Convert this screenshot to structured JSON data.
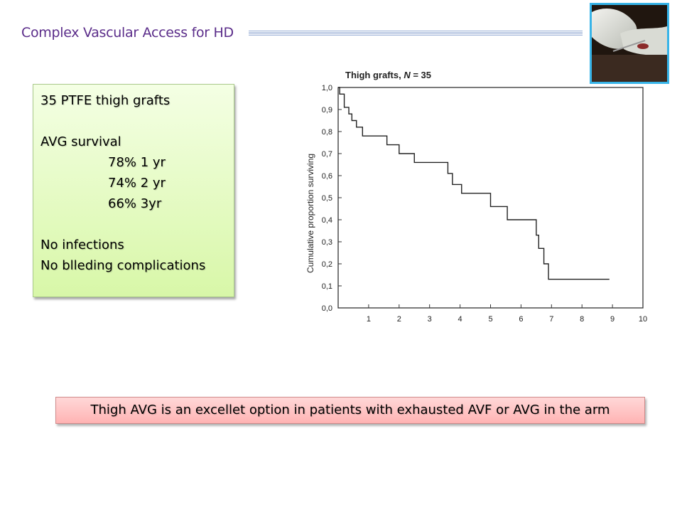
{
  "slide": {
    "title": "Complex Vascular Access for HD"
  },
  "info_box": {
    "line1": "35 PTFE thigh grafts",
    "line2": "AVG survival",
    "line3": "78% 1 yr",
    "line4": "74% 2 yr",
    "line5": "66% 3yr",
    "line6": "No infections",
    "line7": "No blleding complications"
  },
  "conclusion": {
    "text": "Thigh AVG is an excellet option in patients with exhausted AVF or AVG in the arm"
  },
  "colors": {
    "title": "#5b2d8a",
    "info_box_bg": "#d8f7a8",
    "conclusion_bg": "#ffb3b3",
    "photo_border": "#38b4e8"
  },
  "chart_data": {
    "type": "line",
    "step": true,
    "title_prefix": "Thigh grafts, ",
    "title_n_label": "N",
    "title_n_value": " = 35",
    "ylabel": "Cumulative proportion surviving",
    "xlabel": "",
    "xlim": [
      0,
      10
    ],
    "ylim": [
      0,
      1.0
    ],
    "x_ticks": [
      "1",
      "2",
      "3",
      "4",
      "5",
      "6",
      "7",
      "8",
      "9",
      "10"
    ],
    "y_ticks": [
      "0,0",
      "0,1",
      "0,2",
      "0,3",
      "0,4",
      "0,5",
      "0,6",
      "0,7",
      "0,8",
      "0,9",
      "1,0"
    ],
    "grid": false,
    "series": [
      {
        "x": [
          0,
          0.05,
          0.2,
          0.35,
          0.45,
          0.6,
          0.8,
          1.6,
          2.0,
          2.5,
          3.6,
          3.75,
          4.05,
          5.0,
          5.55,
          6.5,
          6.58,
          6.75,
          6.9,
          8.9
        ],
        "y": [
          1.0,
          0.97,
          0.91,
          0.88,
          0.85,
          0.82,
          0.78,
          0.74,
          0.7,
          0.66,
          0.61,
          0.56,
          0.52,
          0.46,
          0.4,
          0.33,
          0.27,
          0.2,
          0.13,
          0.13
        ]
      }
    ]
  }
}
